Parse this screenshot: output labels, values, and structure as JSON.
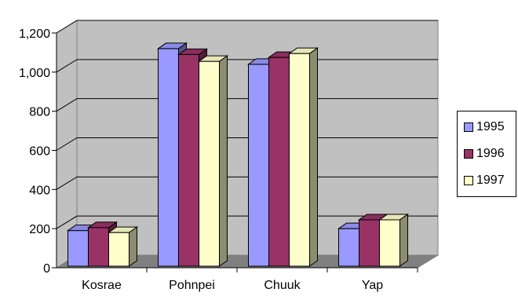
{
  "chart_data": {
    "type": "bar",
    "style": "3d-clustered-column",
    "categories": [
      "Kosrae",
      "Pohnpei",
      "Chuuk",
      "Yap"
    ],
    "series": [
      {
        "name": "1995",
        "values": [
          190,
          1120,
          1040,
          200
        ],
        "color": "#9999ff"
      },
      {
        "name": "1996",
        "values": [
          205,
          1090,
          1075,
          245
        ],
        "color": "#993366"
      },
      {
        "name": "1997",
        "values": [
          180,
          1055,
          1095,
          245
        ],
        "color": "#ffffcc"
      }
    ],
    "ylim": [
      0,
      1200
    ],
    "yticks": [
      "0",
      "200",
      "400",
      "600",
      "800",
      "1,000",
      "1,200"
    ],
    "title": "",
    "xlabel": "",
    "ylabel": "",
    "grid": true,
    "legend_position": "right",
    "colors": {
      "wall": "#c0c0c0",
      "floor": "#808080",
      "gridline": "#000000"
    }
  }
}
